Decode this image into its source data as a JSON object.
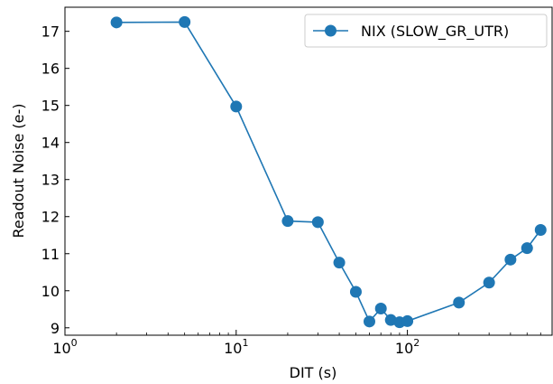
{
  "chart_data": {
    "type": "line",
    "xlabel": "DIT (s)",
    "ylabel": "Readout Noise (e-)",
    "xscale": "log",
    "xlim": [
      1,
      700
    ],
    "ylim": [
      8.8,
      17.65
    ],
    "x_ticks": [
      {
        "value": 1,
        "base": "10",
        "exp": "0"
      },
      {
        "value": 10,
        "base": "10",
        "exp": "1"
      },
      {
        "value": 100,
        "base": "10",
        "exp": "2"
      }
    ],
    "y_ticks": [
      9,
      10,
      11,
      12,
      13,
      14,
      15,
      16,
      17
    ],
    "legend_position": "top-right",
    "series": [
      {
        "name": "NIX (SLOW_GR_UTR)",
        "color": "#1f77b4",
        "marker": "circle",
        "x": [
          2,
          5,
          10,
          20,
          30,
          40,
          50,
          60,
          70,
          80,
          90,
          100,
          200,
          300,
          400,
          500,
          600
        ],
        "y": [
          17.24,
          17.25,
          14.97,
          11.88,
          11.85,
          10.76,
          9.97,
          9.17,
          9.52,
          9.21,
          9.15,
          9.18,
          9.68,
          10.22,
          10.84,
          11.15,
          11.64
        ]
      }
    ]
  }
}
